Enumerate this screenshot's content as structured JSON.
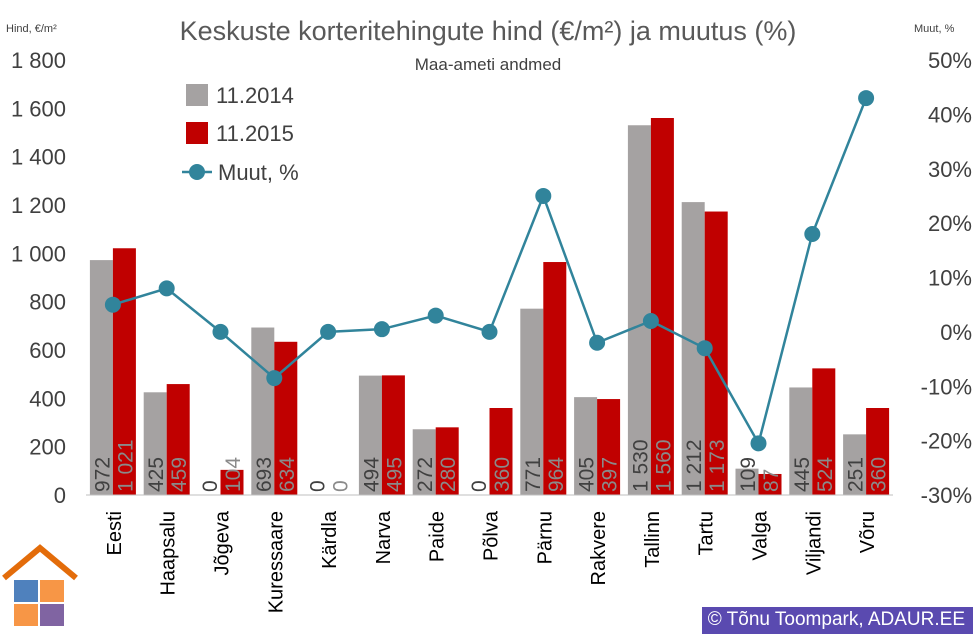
{
  "chart_data": {
    "type": "bar",
    "title": "Keskuste korteritehingute hind (€/m²) ja muutus (%)",
    "subtitle": "Maa-ameti andmed",
    "ylabel_left": "Hind, €/m²",
    "ylabel_right": "Muut, %",
    "ylim_left": [
      0,
      1800
    ],
    "ylim_right": [
      -30,
      50
    ],
    "yticks_left": [
      "0",
      "200",
      "400",
      "600",
      "800",
      "1 000",
      "1 200",
      "1 400",
      "1 600",
      "1 800"
    ],
    "yticks_right": [
      "-30%",
      "-20%",
      "-10%",
      "0%",
      "10%",
      "20%",
      "30%",
      "40%",
      "50%"
    ],
    "categories": [
      "Eesti",
      "Haapsalu",
      "Jõgeva",
      "Kuressaare",
      "Kärdla",
      "Narva",
      "Paide",
      "Põlva",
      "Pärnu",
      "Rakvere",
      "Tallinn",
      "Tartu",
      "Valga",
      "Viljandi",
      "Võru"
    ],
    "series": [
      {
        "name": "11.2014",
        "kind": "bar",
        "color": "#a5a2a2",
        "values": [
          972,
          425,
          0,
          693,
          0,
          494,
          272,
          0,
          771,
          405,
          1530,
          1212,
          109,
          445,
          251
        ],
        "labels": [
          "972",
          "425",
          "0",
          "693",
          "0",
          "494",
          "272",
          "0",
          "771",
          "405",
          "1 530",
          "1 212",
          "109",
          "445",
          "251"
        ]
      },
      {
        "name": "11.2015",
        "kind": "bar",
        "color": "#c00000",
        "values": [
          1021,
          459,
          104,
          634,
          0,
          495,
          280,
          360,
          964,
          397,
          1560,
          1173,
          87,
          524,
          360
        ],
        "labels": [
          "1 021",
          "459",
          "104",
          "634",
          "0",
          "495",
          "280",
          "360",
          "964",
          "397",
          "1 560",
          "1 173",
          "87",
          "524",
          "360"
        ]
      },
      {
        "name": "Muut, %",
        "kind": "line",
        "axis": "right",
        "color": "#31849b",
        "values": [
          5,
          8,
          0,
          -8.5,
          0,
          0.5,
          3,
          0,
          25,
          -2,
          2,
          -3,
          -20.5,
          18,
          43
        ]
      }
    ],
    "legend_position": "top-left",
    "grid": false
  },
  "credit": "© Tõnu Toompark, ADAUR.EE"
}
